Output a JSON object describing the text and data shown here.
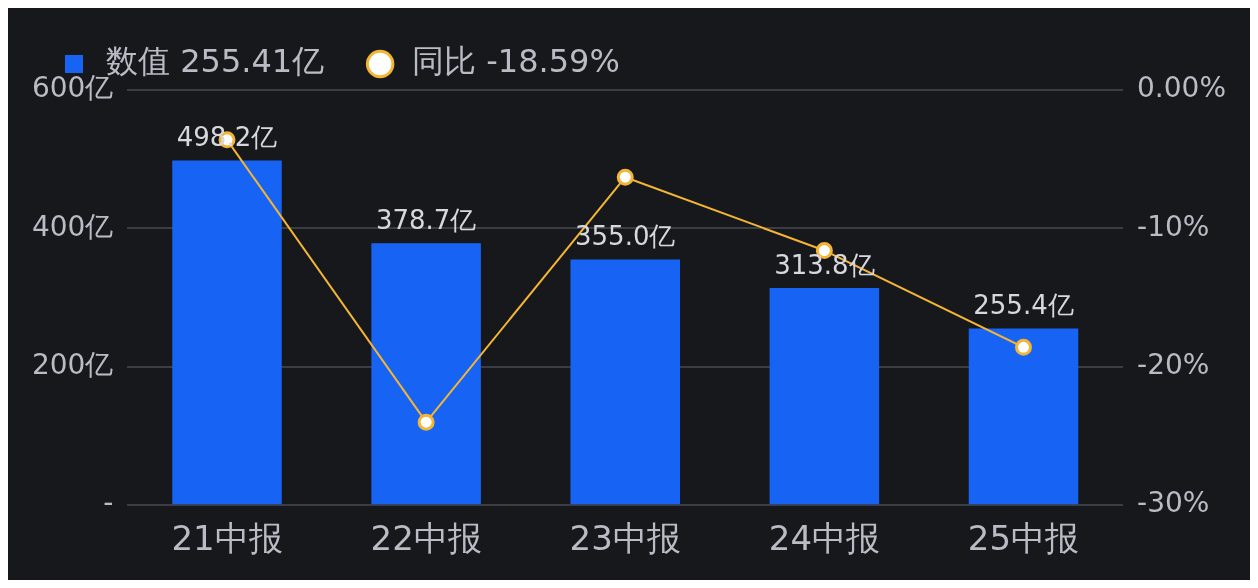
{
  "chart_data": {
    "type": "bar",
    "categories": [
      "21中报",
      "22中报",
      "23中报",
      "24中报",
      "25中报"
    ],
    "series": [
      {
        "name": "数值 255.41亿",
        "color": "#1764f4",
        "values": [
          498.2,
          378.7,
          355.0,
          313.8,
          255.4
        ],
        "value_labels": [
          "498.2亿",
          "378.7亿",
          "355.0亿",
          "313.8亿",
          "255.4亿"
        ]
      },
      {
        "name": "同比 -18.59%",
        "type": "line",
        "axis": "y2",
        "color": "#f4b534",
        "values": [
          -3.6,
          -24.0,
          -6.3,
          -11.6,
          -18.59
        ],
        "marker": "circle",
        "line_style": "solid"
      }
    ],
    "ylim": [
      0,
      600
    ],
    "yticks": [
      {
        "value": 0,
        "label": "-"
      },
      {
        "value": 200,
        "label": "200亿"
      },
      {
        "value": 400,
        "label": "400亿"
      },
      {
        "value": 600,
        "label": "600亿"
      }
    ],
    "y2lim": [
      -30,
      0
    ],
    "y2ticks": [
      {
        "value": -30,
        "label": "-30%"
      },
      {
        "value": -20,
        "label": "-20%"
      },
      {
        "value": -10,
        "label": "-10%"
      },
      {
        "value": 0,
        "label": "0.00%"
      }
    ],
    "grid": "y",
    "legend": "top left"
  }
}
